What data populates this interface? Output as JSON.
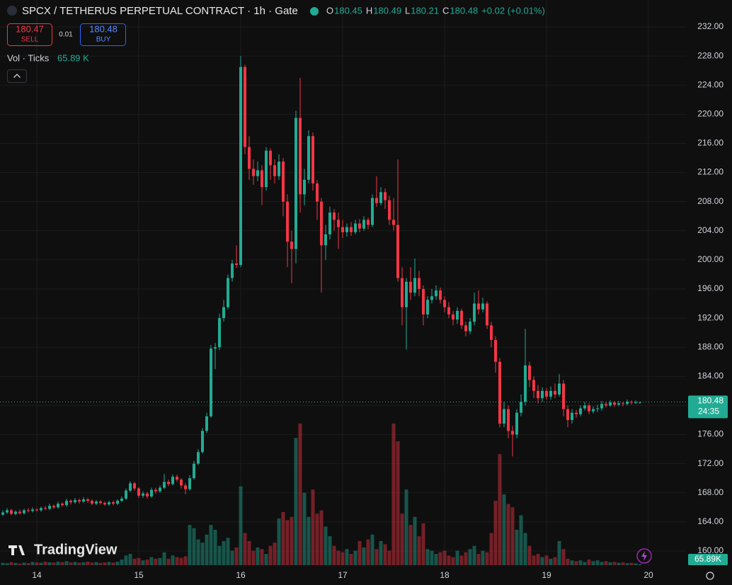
{
  "header": {
    "title": "SPCX / TETHERUS PERPETUAL CONTRACT · 1h · Gate",
    "ohlc": [
      {
        "key": "O",
        "value": "180.45"
      },
      {
        "key": "H",
        "value": "180.49"
      },
      {
        "key": "L",
        "value": "180.21"
      },
      {
        "key": "C",
        "value": "180.48"
      }
    ],
    "change": "+0.02 (+0.01%)"
  },
  "trade": {
    "sell_price": "180.47",
    "sell": "SELL",
    "spread": "0.01",
    "buy_price": "180.48",
    "buy": "BUY"
  },
  "volume_legend": {
    "label": "Vol · Ticks",
    "value": "65.89 K"
  },
  "logo": "TradingView",
  "chart_data": {
    "type": "candlestick",
    "categories": [
      null,
      null,
      null,
      null,
      null,
      null,
      null,
      null,
      "14",
      null,
      null,
      null,
      null,
      null,
      null,
      null,
      null,
      null,
      null,
      null,
      null,
      null,
      null,
      null,
      null,
      null,
      null,
      null,
      null,
      null,
      null,
      null,
      "15",
      null,
      null,
      null,
      null,
      null,
      null,
      null,
      null,
      null,
      null,
      null,
      null,
      null,
      null,
      null,
      null,
      null,
      null,
      null,
      null,
      null,
      null,
      null,
      "16",
      null,
      null,
      null,
      null,
      null,
      null,
      null,
      null,
      null,
      null,
      null,
      null,
      null,
      null,
      null,
      null,
      null,
      null,
      null,
      null,
      null,
      null,
      null,
      "17",
      null,
      null,
      null,
      null,
      null,
      null,
      null,
      null,
      null,
      null,
      null,
      null,
      null,
      null,
      null,
      null,
      null,
      null,
      null,
      null,
      null,
      null,
      null,
      "18",
      null,
      null,
      null,
      null,
      null,
      null,
      null,
      null,
      null,
      null,
      null,
      null,
      null,
      null,
      null,
      null,
      null,
      null,
      null,
      null,
      null,
      null,
      null,
      "19",
      null,
      null,
      null,
      null,
      null,
      null,
      null,
      null,
      null,
      null,
      null,
      null,
      null,
      null,
      null,
      null,
      null,
      null,
      null,
      null,
      null,
      null,
      null,
      "20"
    ],
    "open": [
      165.0,
      165.3,
      165.6,
      165.1,
      165.4,
      165.2,
      165.6,
      165.5,
      165.7,
      165.6,
      165.9,
      165.8,
      166.2,
      166.0,
      166.5,
      166.3,
      166.9,
      166.7,
      167.0,
      166.8,
      167.1,
      166.9,
      166.5,
      166.8,
      166.6,
      166.4,
      166.7,
      166.5,
      166.9,
      167.2,
      168.3,
      169.3,
      168.6,
      167.6,
      167.9,
      167.5,
      168.4,
      168.2,
      168.7,
      169.5,
      169.2,
      170.2,
      169.8,
      169.0,
      168.5,
      170.0,
      172.0,
      173.6,
      176.5,
      178.5,
      187.8,
      188.0,
      192.0,
      193.5,
      197.5,
      199.5,
      199.3,
      226.5,
      215.5,
      212.5,
      211.5,
      212.3,
      210.0,
      215.0,
      213.0,
      211.5,
      213.5,
      208.0,
      202.5,
      201.5,
      219.5,
      209.0,
      211.0,
      217.0,
      210.5,
      208.0,
      202.0,
      203.5,
      206.5,
      205.5,
      204.5,
      203.8,
      204.5,
      203.8,
      205.0,
      204.3,
      205.5,
      204.8,
      208.5,
      207.8,
      209.3,
      208.2,
      205.5,
      204.8,
      197.5,
      193.5,
      197.0,
      195.5,
      197.5,
      196.0,
      192.5,
      194.5,
      195.0,
      195.8,
      194.5,
      193.5,
      192.5,
      191.8,
      193.0,
      191.0,
      190.2,
      191.5,
      194.0,
      193.2,
      194.0,
      191.0,
      189.0,
      186.0,
      177.5,
      179.5,
      176.5,
      176.0,
      179.0,
      180.5,
      185.5,
      183.5,
      182.0,
      181.0,
      182.0,
      181.2,
      182.0,
      181.5,
      183.0,
      179.5,
      178.0,
      179.0,
      178.8,
      179.6,
      180.0,
      179.2,
      179.5,
      179.6,
      180.2,
      180.0,
      180.4,
      180.1,
      180.3,
      180.2,
      180.5,
      180.4,
      180.45,
      null,
      null
    ],
    "high": [
      165.6,
      165.9,
      165.8,
      165.6,
      165.7,
      165.8,
      165.9,
      166.0,
      165.9,
      166.1,
      166.2,
      166.5,
      166.4,
      166.8,
      166.7,
      167.2,
      167.1,
      167.3,
      167.2,
      167.4,
      167.3,
      167.1,
      167.0,
      167.0,
      166.8,
      166.9,
      166.9,
      167.1,
      167.5,
      168.6,
      169.6,
      169.5,
      168.8,
      168.2,
      168.1,
      168.7,
      168.7,
      169.0,
      170.6,
      169.8,
      170.5,
      170.5,
      170.0,
      169.3,
      170.4,
      172.4,
      174.0,
      176.9,
      179.0,
      188.3,
      188.6,
      192.6,
      194.5,
      198.0,
      200.0,
      202.0,
      228.0,
      226.8,
      217.0,
      213.8,
      213.5,
      213.0,
      215.5,
      215.3,
      213.8,
      214.5,
      214.0,
      209.0,
      204.0,
      220.5,
      225.0,
      212.5,
      217.8,
      217.5,
      211.0,
      208.5,
      204.8,
      207.3,
      207.0,
      206.5,
      205.5,
      205.0,
      205.2,
      205.5,
      205.6,
      206.0,
      205.8,
      209.0,
      211.5,
      210.0,
      209.8,
      208.8,
      208.5,
      213.8,
      199.0,
      197.5,
      199.0,
      200.2,
      198.5,
      196.5,
      195.0,
      196.0,
      196.5,
      196.2,
      195.0,
      194.2,
      193.0,
      193.5,
      193.3,
      191.5,
      192.0,
      195.5,
      195.8,
      194.8,
      194.3,
      191.5,
      189.5,
      186.5,
      180.5,
      180.0,
      177.2,
      179.5,
      181.5,
      190.5,
      186.0,
      184.0,
      182.8,
      182.5,
      182.4,
      182.6,
      183.0,
      184.3,
      183.5,
      180.0,
      179.5,
      179.4,
      180.0,
      180.5,
      180.3,
      179.9,
      180.1,
      180.6,
      180.5,
      180.7,
      180.6,
      180.6,
      180.5,
      180.8,
      180.7,
      180.7,
      180.49,
      null,
      null
    ],
    "low": [
      164.8,
      165.1,
      164.9,
      164.9,
      165.0,
      165.0,
      165.3,
      165.3,
      165.4,
      165.4,
      165.6,
      165.6,
      165.8,
      165.8,
      166.1,
      166.1,
      166.4,
      166.5,
      166.5,
      166.6,
      166.6,
      166.3,
      166.3,
      166.4,
      166.2,
      166.2,
      166.3,
      166.3,
      166.7,
      167.0,
      168.1,
      168.3,
      167.3,
      167.3,
      167.2,
      167.3,
      167.9,
      168.0,
      168.5,
      168.9,
      169.0,
      169.5,
      168.6,
      167.8,
      168.3,
      169.8,
      171.8,
      173.4,
      176.2,
      178.3,
      185.0,
      187.6,
      191.5,
      193.2,
      197.0,
      198.9,
      199.0,
      214.5,
      211.0,
      210.3,
      210.8,
      207.5,
      209.5,
      211.0,
      210.5,
      211.0,
      206.0,
      199.0,
      196.8,
      199.5,
      206.5,
      207.5,
      210.5,
      209.5,
      205.5,
      195.5,
      200.0,
      202.8,
      204.0,
      201.5,
      203.0,
      203.2,
      203.3,
      203.5,
      203.8,
      204.0,
      204.2,
      204.5,
      207.3,
      207.5,
      207.0,
      204.8,
      204.0,
      197.0,
      191.0,
      187.7,
      194.5,
      195.0,
      195.0,
      191.0,
      192.0,
      194.0,
      194.5,
      194.0,
      192.8,
      192.0,
      191.0,
      191.2,
      190.5,
      189.5,
      189.8,
      191.0,
      192.5,
      192.8,
      190.5,
      188.0,
      184.5,
      177.0,
      177.0,
      175.5,
      173.0,
      175.5,
      178.5,
      180.0,
      182.5,
      181.0,
      180.3,
      180.5,
      180.8,
      180.8,
      181.0,
      181.2,
      178.5,
      177.0,
      177.5,
      178.3,
      178.5,
      179.3,
      178.8,
      178.9,
      179.1,
      179.3,
      179.7,
      179.8,
      179.8,
      179.9,
      179.9,
      180.0,
      180.1,
      180.2,
      180.21,
      null,
      null
    ],
    "close": [
      165.3,
      165.6,
      165.1,
      165.4,
      165.2,
      165.6,
      165.5,
      165.7,
      165.6,
      165.9,
      165.8,
      166.2,
      166.0,
      166.5,
      166.3,
      166.9,
      166.7,
      167.0,
      166.8,
      167.1,
      166.9,
      166.5,
      166.8,
      166.6,
      166.4,
      166.7,
      166.5,
      166.9,
      167.2,
      168.3,
      169.3,
      168.6,
      167.6,
      167.9,
      167.5,
      168.4,
      168.2,
      168.7,
      169.5,
      169.2,
      170.2,
      169.8,
      169.0,
      168.5,
      170.0,
      172.0,
      173.6,
      176.5,
      178.5,
      187.8,
      188.0,
      192.0,
      193.5,
      197.5,
      199.5,
      199.3,
      226.5,
      215.5,
      212.5,
      211.5,
      212.3,
      210.0,
      215.0,
      213.0,
      211.5,
      213.5,
      208.0,
      202.5,
      201.5,
      219.5,
      209.0,
      211.0,
      217.0,
      210.5,
      208.0,
      202.0,
      203.5,
      206.5,
      205.5,
      204.5,
      203.8,
      204.5,
      203.8,
      205.0,
      204.3,
      205.5,
      204.8,
      208.5,
      207.8,
      209.3,
      208.2,
      205.5,
      204.8,
      197.5,
      193.5,
      197.0,
      195.5,
      197.5,
      196.0,
      192.5,
      194.5,
      195.0,
      195.8,
      194.5,
      193.5,
      192.5,
      191.8,
      193.0,
      191.0,
      190.2,
      191.5,
      194.0,
      193.2,
      194.0,
      191.0,
      189.0,
      186.0,
      177.5,
      179.5,
      176.5,
      176.0,
      179.0,
      180.5,
      185.5,
      183.5,
      182.0,
      181.0,
      182.0,
      181.2,
      182.0,
      181.5,
      183.0,
      179.5,
      178.0,
      179.0,
      178.8,
      179.6,
      180.0,
      179.2,
      179.5,
      179.6,
      180.2,
      180.0,
      180.4,
      180.1,
      180.3,
      180.2,
      180.5,
      180.4,
      180.45,
      180.48,
      null,
      null
    ],
    "volume": [
      150,
      120,
      180,
      140,
      100,
      160,
      130,
      200,
      170,
      150,
      220,
      180,
      160,
      210,
      190,
      250,
      170,
      200,
      150,
      180,
      220,
      160,
      190,
      140,
      170,
      200,
      160,
      210,
      350,
      600,
      700,
      400,
      450,
      300,
      350,
      500,
      400,
      450,
      800,
      400,
      600,
      500,
      450,
      550,
      2500,
      2300,
      1600,
      1400,
      1900,
      2500,
      2200,
      1200,
      1500,
      1700,
      900,
      1100,
      4900,
      2000,
      1500,
      900,
      1100,
      1000,
      700,
      1200,
      1400,
      2900,
      3300,
      2800,
      3000,
      7900,
      8800,
      4500,
      3000,
      4700,
      3200,
      3400,
      2400,
      1800,
      1200,
      900,
      800,
      1000,
      700,
      900,
      1500,
      1100,
      1600,
      1900,
      1000,
      1500,
      1300,
      900,
      8800,
      7700,
      3200,
      4700,
      2500,
      3000,
      1800,
      2600,
      1000,
      900,
      700,
      800,
      900,
      600,
      500,
      900,
      600,
      800,
      1000,
      1200,
      700,
      900,
      800,
      2000,
      4000,
      6900,
      4400,
      3800,
      3600,
      2200,
      3100,
      2000,
      1200,
      600,
      700,
      500,
      600,
      400,
      500,
      1500,
      1000,
      400,
      300,
      250,
      300,
      200,
      350,
      250,
      300,
      200,
      250,
      180,
      200,
      150,
      170,
      120,
      140,
      110,
      65.89,
      null,
      null
    ],
    "up_color": "#22ab94",
    "down_color": "#f23645",
    "ylim": [
      157.86,
      235.7
    ],
    "yticks": [
      {
        "value": 160,
        "label": "160.00"
      },
      {
        "value": 164,
        "label": "164.00"
      },
      {
        "value": 168,
        "label": "168.00"
      },
      {
        "value": 172,
        "label": "172.00"
      },
      {
        "value": 176,
        "label": "176.00"
      },
      {
        "value": 180,
        "label": "180.00"
      },
      {
        "value": 184,
        "label": "184.00"
      },
      {
        "value": 188,
        "label": "188.00"
      },
      {
        "value": 192,
        "label": "192.00"
      },
      {
        "value": 196,
        "label": "196.00"
      },
      {
        "value": 200,
        "label": "200.00"
      },
      {
        "value": 204,
        "label": "204.00"
      },
      {
        "value": 208,
        "label": "208.00"
      },
      {
        "value": 212,
        "label": "212.00"
      },
      {
        "value": 216,
        "label": "216.00"
      },
      {
        "value": 220,
        "label": "220.00"
      },
      {
        "value": 224,
        "label": "224.00"
      },
      {
        "value": 228,
        "label": "228.00"
      },
      {
        "value": 232,
        "label": "232.00"
      }
    ],
    "grid": true,
    "last_price_label": "180.48",
    "countdown": "24:35",
    "volume_label": "65.89K"
  }
}
